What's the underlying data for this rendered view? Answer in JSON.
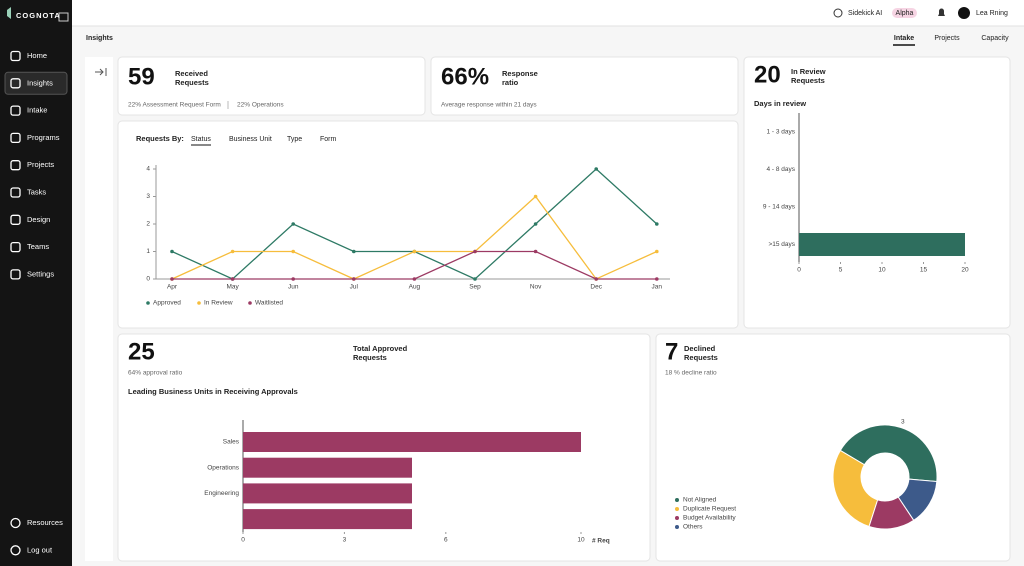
{
  "sidebar": {
    "brand": "COGNOTA",
    "nav": [
      "Home",
      "Insights",
      "Intake",
      "Programs",
      "Projects",
      "Tasks",
      "Design",
      "Teams",
      "Settings"
    ],
    "active": 1,
    "footer": [
      "Resources",
      "Log out"
    ]
  },
  "topbar": {
    "assistant": "Sidekick AI",
    "badge": "Alpha",
    "user": "Lea Rning"
  },
  "header": {
    "title": "Insights",
    "tabs": [
      "Intake",
      "Projects",
      "Capacity"
    ],
    "active": 0
  },
  "received": {
    "value": 59,
    "label": [
      "Received",
      "Requests"
    ],
    "sub": [
      "22% Assessment Request Form",
      "22% Operations"
    ]
  },
  "response": {
    "value": "66%",
    "label": [
      "Response",
      "ratio"
    ],
    "sub": "Average response within 21 days"
  },
  "line_chart": {
    "type": "line",
    "title": "Requests By:",
    "filters": [
      "Status",
      "Business Unit",
      "Type",
      "Form"
    ],
    "active": 0,
    "categories": [
      "Apr",
      "May",
      "Jun",
      "Jul",
      "Aug",
      "Sep",
      "Nov",
      "Dec",
      "Jan"
    ],
    "ylim": [
      0,
      4
    ],
    "yticks": [
      0,
      1,
      2,
      3,
      4
    ],
    "series": [
      {
        "name": "Approved",
        "color": "#2e7a65",
        "values": [
          1,
          0,
          2,
          1,
          1,
          0,
          2,
          4,
          2
        ]
      },
      {
        "name": "In Review",
        "color": "#f6bd3c",
        "values": [
          0,
          1,
          1,
          0,
          1,
          1,
          3,
          0,
          1
        ]
      },
      {
        "name": "Waitlisted",
        "color": "#9c3a63",
        "values": [
          0,
          0,
          0,
          0,
          0,
          1,
          1,
          0,
          0
        ]
      }
    ]
  },
  "in_review": {
    "value": 20,
    "label": [
      "In Review",
      "Requests"
    ],
    "chart": {
      "type": "hbar",
      "title": "Days in review",
      "categories": [
        "1 - 3 days",
        "4 - 8 days",
        "9 - 14 days",
        ">15 days"
      ],
      "values": [
        0,
        0,
        0,
        20
      ],
      "color": "#2e6e5e",
      "xlim": [
        0,
        20
      ],
      "xticks": [
        0,
        5,
        10,
        15,
        20
      ]
    }
  },
  "approved": {
    "value": 25,
    "label": [
      "Total Approved",
      "Requests"
    ],
    "sub": "64% approval ratio",
    "chart": {
      "type": "hbar",
      "title": "Leading Business Units in Receiving Approvals",
      "categories": [
        "Sales",
        "Operations",
        "Engineering",
        null
      ],
      "values": [
        10,
        5,
        5,
        5
      ],
      "color": "#9c3a63",
      "xlim": [
        0,
        10
      ],
      "xticks": [
        0,
        3,
        6,
        10
      ],
      "xlabel": "# Req"
    }
  },
  "declined": {
    "value": 7,
    "label": [
      "Declined",
      "Requests"
    ],
    "sub": "18 % decline ratio",
    "chart": {
      "type": "donut",
      "categories": [
        "Not Aligned",
        "Duplicate Request",
        "Budget Availability",
        "Others"
      ],
      "values": [
        3,
        2,
        1,
        1
      ],
      "colors": [
        "#2e6e5e",
        "#f6bd3c",
        "#9c3a63",
        "#3d5a8a"
      ]
    }
  }
}
